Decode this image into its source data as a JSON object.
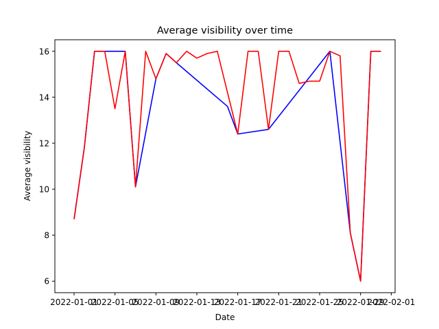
{
  "chart_data": {
    "type": "line",
    "title": "Average visibility over time",
    "xlabel": "Date",
    "ylabel": "Average visibility",
    "x_ticks": [
      "2022-01-01",
      "2022-01-05",
      "2022-01-09",
      "2022-01-13",
      "2022-01-17",
      "2022-01-21",
      "2022-01-25",
      "2022-01-29",
      "2022-02-01"
    ],
    "y_ticks": [
      "6",
      "8",
      "10",
      "12",
      "14",
      "16"
    ],
    "xlim": [
      "2021-12-30T03:00",
      "2022-02-01T09:00"
    ],
    "ylim": [
      5.5,
      16.5
    ],
    "grid": false,
    "series": [
      {
        "color": "#0000ff",
        "points": [
          [
            "2022-01-01",
            8.7
          ],
          [
            "2022-01-02",
            11.8
          ],
          [
            "2022-01-03",
            16.0
          ],
          [
            "2022-01-04",
            16.0
          ],
          [
            "2022-01-06",
            16.0
          ],
          [
            "2022-01-07",
            10.1
          ],
          [
            "2022-01-09",
            14.8
          ],
          [
            "2022-01-10",
            15.9
          ],
          [
            "2022-01-11",
            15.5
          ],
          [
            "2022-01-16",
            13.6
          ],
          [
            "2022-01-17",
            12.4
          ],
          [
            "2022-01-20",
            12.6
          ],
          [
            "2022-01-26",
            16.0
          ],
          [
            "2022-01-28",
            8.1
          ],
          [
            "2022-01-29",
            6.0
          ],
          [
            "2022-01-30",
            16.0
          ],
          [
            "2022-01-31",
            16.0
          ]
        ]
      },
      {
        "color": "#ff0000",
        "points": [
          [
            "2022-01-01",
            8.7
          ],
          [
            "2022-01-02",
            11.8
          ],
          [
            "2022-01-03",
            16.0
          ],
          [
            "2022-01-04",
            16.0
          ],
          [
            "2022-01-05",
            13.5
          ],
          [
            "2022-01-06",
            16.0
          ],
          [
            "2022-01-07",
            10.1
          ],
          [
            "2022-01-08",
            16.0
          ],
          [
            "2022-01-09",
            14.8
          ],
          [
            "2022-01-10",
            15.9
          ],
          [
            "2022-01-11",
            15.5
          ],
          [
            "2022-01-12",
            16.0
          ],
          [
            "2022-01-13",
            15.7
          ],
          [
            "2022-01-14",
            15.9
          ],
          [
            "2022-01-15",
            16.0
          ],
          [
            "2022-01-17",
            12.4
          ],
          [
            "2022-01-18",
            16.0
          ],
          [
            "2022-01-19",
            16.0
          ],
          [
            "2022-01-20",
            12.6
          ],
          [
            "2022-01-21",
            16.0
          ],
          [
            "2022-01-22",
            16.0
          ],
          [
            "2022-01-23",
            14.6
          ],
          [
            "2022-01-24",
            14.7
          ],
          [
            "2022-01-25",
            14.7
          ],
          [
            "2022-01-26",
            16.0
          ],
          [
            "2022-01-27",
            15.8
          ],
          [
            "2022-01-28",
            8.1
          ],
          [
            "2022-01-29",
            6.0
          ],
          [
            "2022-01-30",
            16.0
          ],
          [
            "2022-01-31",
            16.0
          ]
        ]
      }
    ]
  }
}
